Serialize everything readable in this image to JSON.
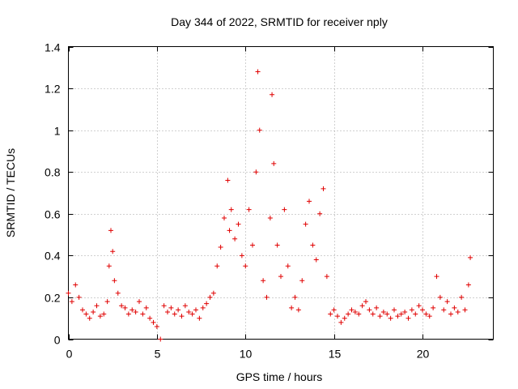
{
  "chart_data": {
    "type": "scatter",
    "title": "Day 344 of 2022, SRMTID for receiver nply",
    "xlabel": "GPS time / hours",
    "ylabel": "SRMTID / TECUs",
    "xlim": [
      0,
      24
    ],
    "ylim": [
      0,
      1.4
    ],
    "xticks": [
      0,
      5,
      10,
      15,
      20
    ],
    "xtick_labels": [
      "0",
      "5",
      "10",
      "15",
      "20"
    ],
    "yticks": [
      0,
      0.2,
      0.4,
      0.6,
      0.8,
      1.0,
      1.2,
      1.4
    ],
    "ytick_labels": [
      "0",
      "0.2",
      "0.4",
      "0.6",
      "0.8",
      "1",
      "1.2",
      "1.4"
    ],
    "grid": true,
    "marker": "plus",
    "color": "#e00000",
    "series": [
      {
        "name": "SRMTID",
        "x": [
          0.0,
          0.2,
          0.4,
          0.6,
          0.8,
          1.0,
          1.2,
          1.4,
          1.6,
          1.8,
          2.0,
          2.2,
          2.3,
          2.4,
          2.5,
          2.6,
          2.8,
          3.0,
          3.2,
          3.4,
          3.6,
          3.8,
          4.0,
          4.2,
          4.4,
          4.6,
          4.8,
          5.0,
          5.2,
          5.4,
          5.6,
          5.8,
          6.0,
          6.2,
          6.4,
          6.6,
          6.8,
          7.0,
          7.2,
          7.4,
          7.6,
          7.8,
          8.0,
          8.2,
          8.4,
          8.6,
          8.8,
          9.0,
          9.1,
          9.2,
          9.4,
          9.6,
          9.8,
          10.0,
          10.2,
          10.4,
          10.6,
          10.7,
          10.8,
          11.0,
          11.2,
          11.4,
          11.5,
          11.6,
          11.8,
          12.0,
          12.2,
          12.4,
          12.6,
          12.8,
          13.0,
          13.2,
          13.4,
          13.6,
          13.8,
          14.0,
          14.2,
          14.4,
          14.6,
          14.8,
          15.0,
          15.2,
          15.4,
          15.6,
          15.8,
          16.0,
          16.2,
          16.4,
          16.6,
          16.8,
          17.0,
          17.2,
          17.4,
          17.6,
          17.8,
          18.0,
          18.2,
          18.4,
          18.6,
          18.8,
          19.0,
          19.2,
          19.4,
          19.6,
          19.8,
          20.0,
          20.2,
          20.4,
          20.6,
          20.8,
          21.0,
          21.2,
          21.4,
          21.6,
          21.8,
          22.0,
          22.2,
          22.4,
          22.6,
          22.7
        ],
        "y": [
          0.22,
          0.18,
          0.26,
          0.2,
          0.14,
          0.12,
          0.1,
          0.13,
          0.16,
          0.11,
          0.12,
          0.18,
          0.35,
          0.52,
          0.42,
          0.28,
          0.22,
          0.16,
          0.15,
          0.12,
          0.14,
          0.13,
          0.18,
          0.12,
          0.15,
          0.1,
          0.08,
          0.06,
          0.0,
          0.16,
          0.13,
          0.15,
          0.12,
          0.14,
          0.11,
          0.16,
          0.13,
          0.12,
          0.14,
          0.1,
          0.15,
          0.17,
          0.2,
          0.22,
          0.35,
          0.44,
          0.58,
          0.76,
          0.52,
          0.62,
          0.48,
          0.55,
          0.4,
          0.35,
          0.62,
          0.45,
          0.8,
          1.28,
          1.0,
          0.28,
          0.2,
          0.58,
          1.17,
          0.84,
          0.45,
          0.3,
          0.62,
          0.35,
          0.15,
          0.2,
          0.14,
          0.28,
          0.55,
          0.66,
          0.45,
          0.38,
          0.6,
          0.72,
          0.3,
          0.12,
          0.14,
          0.11,
          0.08,
          0.1,
          0.12,
          0.14,
          0.13,
          0.12,
          0.16,
          0.18,
          0.14,
          0.12,
          0.15,
          0.11,
          0.13,
          0.12,
          0.1,
          0.14,
          0.11,
          0.12,
          0.13,
          0.1,
          0.14,
          0.12,
          0.16,
          0.14,
          0.12,
          0.11,
          0.15,
          0.3,
          0.2,
          0.14,
          0.18,
          0.12,
          0.15,
          0.13,
          0.2,
          0.14,
          0.26,
          0.39
        ]
      }
    ]
  }
}
